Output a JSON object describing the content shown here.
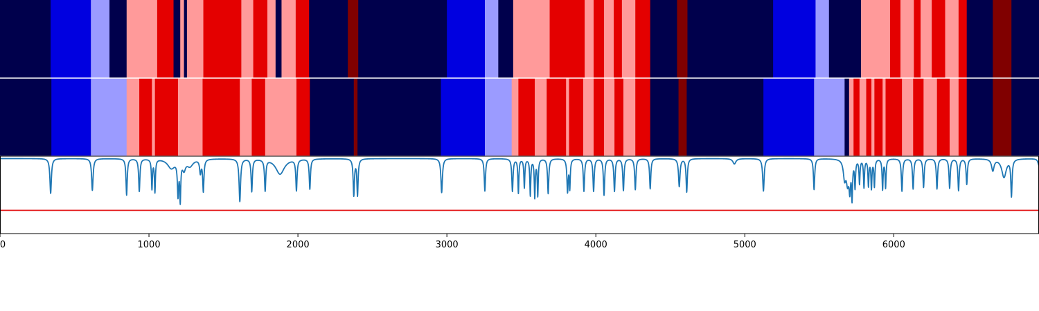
{
  "chart_data": {
    "type": "heatmap",
    "xlim": [
      0,
      6975
    ],
    "x_ticks": [
      0,
      1000,
      2000,
      3000,
      4000,
      5000,
      6000
    ],
    "x_tick_labels": [
      "0",
      "1000",
      "2000",
      "3000",
      "4000",
      "5000",
      "6000"
    ],
    "palette": {
      "0": "#00004c",
      "1": "#0000e0",
      "2": "#9b9bff",
      "3": "#ff9a9a",
      "4": "#e40000",
      "5": "#800000"
    },
    "rows": [
      {
        "segments": [
          [
            0,
            340,
            0
          ],
          [
            340,
            610,
            1
          ],
          [
            610,
            735,
            2
          ],
          [
            735,
            850,
            0
          ],
          [
            850,
            1055,
            3
          ],
          [
            1055,
            1165,
            4
          ],
          [
            1165,
            1210,
            0
          ],
          [
            1210,
            1235,
            3
          ],
          [
            1235,
            1255,
            0
          ],
          [
            1255,
            1365,
            3
          ],
          [
            1365,
            1620,
            4
          ],
          [
            1620,
            1700,
            3
          ],
          [
            1700,
            1795,
            4
          ],
          [
            1795,
            1850,
            3
          ],
          [
            1850,
            1890,
            0
          ],
          [
            1890,
            1985,
            3
          ],
          [
            1985,
            2075,
            4
          ],
          [
            2075,
            2335,
            0
          ],
          [
            2335,
            2405,
            5
          ],
          [
            2405,
            3000,
            0
          ],
          [
            3000,
            3255,
            1
          ],
          [
            3255,
            3345,
            2
          ],
          [
            3345,
            3445,
            0
          ],
          [
            3445,
            3690,
            3
          ],
          [
            3690,
            3925,
            4
          ],
          [
            3925,
            3985,
            3
          ],
          [
            3985,
            4055,
            4
          ],
          [
            4055,
            4120,
            3
          ],
          [
            4120,
            4175,
            4
          ],
          [
            4175,
            4265,
            3
          ],
          [
            4265,
            4365,
            4
          ],
          [
            4365,
            4545,
            0
          ],
          [
            4545,
            4615,
            5
          ],
          [
            4615,
            5190,
            0
          ],
          [
            5190,
            5475,
            1
          ],
          [
            5475,
            5565,
            2
          ],
          [
            5565,
            5780,
            0
          ],
          [
            5780,
            5975,
            3
          ],
          [
            5975,
            6045,
            4
          ],
          [
            6045,
            6135,
            3
          ],
          [
            6135,
            6180,
            4
          ],
          [
            6180,
            6255,
            3
          ],
          [
            6255,
            6345,
            4
          ],
          [
            6345,
            6435,
            3
          ],
          [
            6435,
            6490,
            4
          ],
          [
            6490,
            6665,
            0
          ],
          [
            6665,
            6790,
            5
          ],
          [
            6790,
            6975,
            0
          ]
        ]
      },
      {
        "segments": [
          [
            0,
            345,
            0
          ],
          [
            345,
            610,
            1
          ],
          [
            610,
            850,
            2
          ],
          [
            850,
            935,
            3
          ],
          [
            935,
            1020,
            4
          ],
          [
            1020,
            1040,
            3
          ],
          [
            1040,
            1195,
            4
          ],
          [
            1195,
            1360,
            3
          ],
          [
            1360,
            1610,
            4
          ],
          [
            1610,
            1690,
            3
          ],
          [
            1690,
            1780,
            4
          ],
          [
            1780,
            1990,
            3
          ],
          [
            1990,
            2080,
            4
          ],
          [
            2080,
            2375,
            0
          ],
          [
            2375,
            2400,
            5
          ],
          [
            2400,
            2960,
            0
          ],
          [
            2960,
            3255,
            1
          ],
          [
            3255,
            3435,
            2
          ],
          [
            3435,
            3480,
            3
          ],
          [
            3480,
            3590,
            4
          ],
          [
            3590,
            3670,
            3
          ],
          [
            3670,
            3800,
            4
          ],
          [
            3800,
            3820,
            3
          ],
          [
            3820,
            3915,
            4
          ],
          [
            3915,
            3985,
            3
          ],
          [
            3985,
            4055,
            4
          ],
          [
            4055,
            4125,
            3
          ],
          [
            4125,
            4185,
            4
          ],
          [
            4185,
            4265,
            3
          ],
          [
            4265,
            4365,
            4
          ],
          [
            4365,
            4555,
            0
          ],
          [
            4555,
            4610,
            5
          ],
          [
            4610,
            5125,
            0
          ],
          [
            5125,
            5465,
            1
          ],
          [
            5465,
            5670,
            2
          ],
          [
            5670,
            5700,
            0
          ],
          [
            5700,
            5730,
            3
          ],
          [
            5730,
            5770,
            4
          ],
          [
            5770,
            5815,
            3
          ],
          [
            5815,
            5850,
            4
          ],
          [
            5850,
            5870,
            3
          ],
          [
            5870,
            5925,
            4
          ],
          [
            5925,
            5945,
            3
          ],
          [
            5945,
            6055,
            4
          ],
          [
            6055,
            6130,
            3
          ],
          [
            6130,
            6200,
            4
          ],
          [
            6200,
            6290,
            3
          ],
          [
            6290,
            6375,
            4
          ],
          [
            6375,
            6435,
            3
          ],
          [
            6435,
            6490,
            4
          ],
          [
            6490,
            6665,
            0
          ],
          [
            6665,
            6790,
            5
          ],
          [
            6790,
            6975,
            0
          ]
        ]
      }
    ],
    "line_series": {
      "color": "#1f77b4",
      "baseline": 0.97,
      "ylim": [
        0,
        1
      ],
      "dips": [
        [
          340,
          0.52,
          6
        ],
        [
          620,
          0.56,
          6
        ],
        [
          850,
          0.5,
          5
        ],
        [
          935,
          0.55,
          5
        ],
        [
          1020,
          0.59,
          4
        ],
        [
          1040,
          0.55,
          4
        ],
        [
          1150,
          0.85,
          30
        ],
        [
          1195,
          0.54,
          5
        ],
        [
          1210,
          0.48,
          4
        ],
        [
          1235,
          0.85,
          12
        ],
        [
          1275,
          0.88,
          25
        ],
        [
          1345,
          0.8,
          6
        ],
        [
          1365,
          0.56,
          5
        ],
        [
          1610,
          0.42,
          6
        ],
        [
          1690,
          0.55,
          5
        ],
        [
          1780,
          0.57,
          5
        ],
        [
          1880,
          0.77,
          35
        ],
        [
          1990,
          0.57,
          5
        ],
        [
          2080,
          0.58,
          5
        ],
        [
          2375,
          0.5,
          5
        ],
        [
          2400,
          0.5,
          5
        ],
        [
          2965,
          0.53,
          6
        ],
        [
          3255,
          0.55,
          5
        ],
        [
          3440,
          0.55,
          5
        ],
        [
          3480,
          0.53,
          4
        ],
        [
          3520,
          0.6,
          4
        ],
        [
          3560,
          0.5,
          4
        ],
        [
          3590,
          0.48,
          4
        ],
        [
          3610,
          0.5,
          4
        ],
        [
          3680,
          0.52,
          5
        ],
        [
          3810,
          0.55,
          5
        ],
        [
          3825,
          0.6,
          4
        ],
        [
          3920,
          0.55,
          5
        ],
        [
          3985,
          0.55,
          5
        ],
        [
          4055,
          0.5,
          5
        ],
        [
          4125,
          0.55,
          5
        ],
        [
          4185,
          0.56,
          5
        ],
        [
          4265,
          0.57,
          5
        ],
        [
          4365,
          0.58,
          5
        ],
        [
          4560,
          0.61,
          6
        ],
        [
          4610,
          0.54,
          5
        ],
        [
          4930,
          0.9,
          12
        ],
        [
          5125,
          0.55,
          6
        ],
        [
          5465,
          0.57,
          5
        ],
        [
          5670,
          0.73,
          10
        ],
        [
          5690,
          0.69,
          10
        ],
        [
          5705,
          0.62,
          6
        ],
        [
          5720,
          0.5,
          4
        ],
        [
          5740,
          0.62,
          4
        ],
        [
          5770,
          0.66,
          4
        ],
        [
          5800,
          0.61,
          4
        ],
        [
          5830,
          0.63,
          4
        ],
        [
          5850,
          0.6,
          4
        ],
        [
          5870,
          0.62,
          4
        ],
        [
          5925,
          0.58,
          4
        ],
        [
          5945,
          0.6,
          4
        ],
        [
          6055,
          0.55,
          5
        ],
        [
          6130,
          0.58,
          5
        ],
        [
          6200,
          0.6,
          5
        ],
        [
          6290,
          0.58,
          5
        ],
        [
          6375,
          0.59,
          5
        ],
        [
          6435,
          0.56,
          5
        ],
        [
          6490,
          0.64,
          5
        ],
        [
          6665,
          0.82,
          10
        ],
        [
          6740,
          0.73,
          18
        ],
        [
          6790,
          0.5,
          5
        ],
        [
          6975,
          0.88,
          8
        ]
      ]
    },
    "threshold": {
      "value": 0.3,
      "color": "#e41a1c"
    }
  }
}
